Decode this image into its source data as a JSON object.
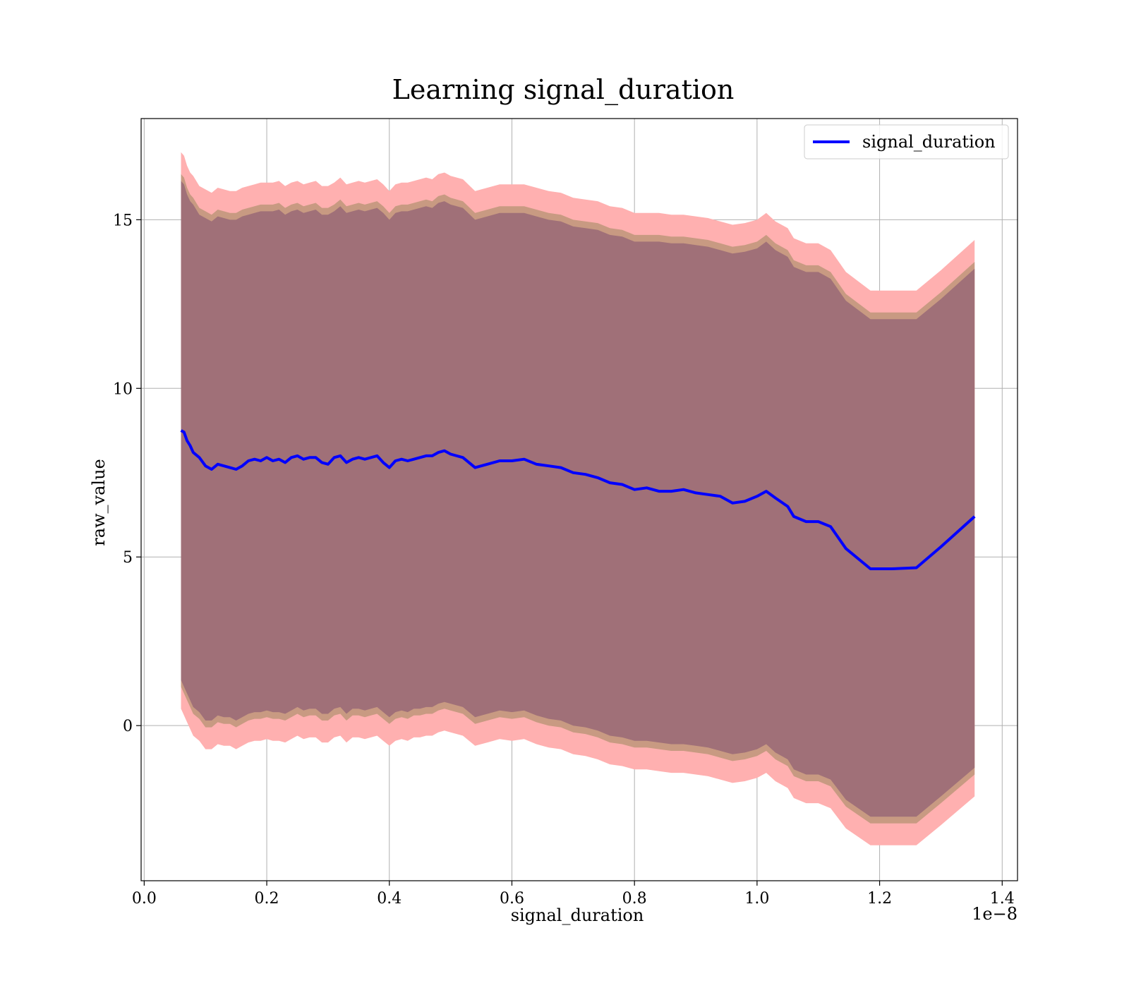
{
  "chart_data": {
    "type": "line",
    "title": "Learning signal_duration",
    "xlabel": "signal_duration",
    "ylabel": "raw_value",
    "x_offset_label": "1e−8",
    "xlim": [
      -0.005,
      1.425
    ],
    "ylim": [
      -4.6,
      18.0
    ],
    "xticks": [
      0.0,
      0.2,
      0.4,
      0.6,
      0.8,
      1.0,
      1.2,
      1.4
    ],
    "xtick_labels": [
      "0.0",
      "0.2",
      "0.4",
      "0.6",
      "0.8",
      "1.0",
      "1.2",
      "1.4"
    ],
    "yticks": [
      0,
      5,
      10,
      15
    ],
    "ytick_labels": [
      "0",
      "5",
      "10",
      "15"
    ],
    "grid": true,
    "legend": {
      "position": "top-right",
      "entries": [
        "signal_duration"
      ]
    },
    "colors": {
      "line": "#0000ff",
      "outer_band": "#ffb0b0",
      "middle_band": "#c89a82",
      "inner_band": "#a07078"
    },
    "x": [
      0.06,
      0.065,
      0.07,
      0.075,
      0.08,
      0.09,
      0.1,
      0.11,
      0.12,
      0.13,
      0.14,
      0.15,
      0.16,
      0.17,
      0.18,
      0.19,
      0.2,
      0.21,
      0.22,
      0.23,
      0.24,
      0.25,
      0.26,
      0.27,
      0.28,
      0.29,
      0.3,
      0.31,
      0.32,
      0.33,
      0.34,
      0.35,
      0.36,
      0.37,
      0.38,
      0.39,
      0.4,
      0.41,
      0.42,
      0.43,
      0.44,
      0.45,
      0.46,
      0.47,
      0.48,
      0.49,
      0.5,
      0.52,
      0.54,
      0.56,
      0.58,
      0.6,
      0.62,
      0.64,
      0.66,
      0.68,
      0.7,
      0.72,
      0.74,
      0.76,
      0.78,
      0.8,
      0.82,
      0.84,
      0.86,
      0.88,
      0.9,
      0.92,
      0.94,
      0.96,
      0.98,
      1.0,
      1.015,
      1.03,
      1.05,
      1.06,
      1.08,
      1.1,
      1.12,
      1.145,
      1.185,
      1.22,
      1.26,
      1.3,
      1.355
    ],
    "series": [
      {
        "name": "signal_duration",
        "mean": [
          8.75,
          8.7,
          8.45,
          8.3,
          8.1,
          7.95,
          7.7,
          7.6,
          7.75,
          7.7,
          7.65,
          7.6,
          7.7,
          7.85,
          7.9,
          7.85,
          7.95,
          7.85,
          7.9,
          7.8,
          7.95,
          8.0,
          7.9,
          7.95,
          7.95,
          7.8,
          7.75,
          7.95,
          8.0,
          7.8,
          7.9,
          7.95,
          7.9,
          7.95,
          8.0,
          7.8,
          7.65,
          7.85,
          7.9,
          7.85,
          7.9,
          7.95,
          8.0,
          8.0,
          8.1,
          8.15,
          8.05,
          7.95,
          7.65,
          7.75,
          7.85,
          7.85,
          7.9,
          7.75,
          7.7,
          7.65,
          7.5,
          7.45,
          7.35,
          7.2,
          7.15,
          7.0,
          7.05,
          6.95,
          6.95,
          7.0,
          6.9,
          6.85,
          6.8,
          6.6,
          6.65,
          6.8,
          6.95,
          6.75,
          6.5,
          6.2,
          6.05,
          6.05,
          5.9,
          5.25,
          4.65,
          4.65,
          4.68,
          5.3,
          6.2
        ],
        "outer_lower": [
          0.5,
          0.3,
          0.1,
          -0.1,
          -0.3,
          -0.45,
          -0.7,
          -0.7,
          -0.55,
          -0.6,
          -0.6,
          -0.7,
          -0.6,
          -0.5,
          -0.45,
          -0.45,
          -0.4,
          -0.45,
          -0.45,
          -0.5,
          -0.4,
          -0.3,
          -0.4,
          -0.35,
          -0.35,
          -0.5,
          -0.5,
          -0.35,
          -0.3,
          -0.5,
          -0.35,
          -0.35,
          -0.4,
          -0.35,
          -0.3,
          -0.45,
          -0.6,
          -0.45,
          -0.4,
          -0.45,
          -0.35,
          -0.35,
          -0.3,
          -0.3,
          -0.2,
          -0.15,
          -0.2,
          -0.3,
          -0.6,
          -0.5,
          -0.4,
          -0.45,
          -0.4,
          -0.55,
          -0.65,
          -0.7,
          -0.85,
          -0.9,
          -1.0,
          -1.15,
          -1.2,
          -1.3,
          -1.3,
          -1.35,
          -1.4,
          -1.4,
          -1.45,
          -1.5,
          -1.6,
          -1.7,
          -1.65,
          -1.55,
          -1.4,
          -1.65,
          -1.85,
          -2.15,
          -2.3,
          -2.3,
          -2.45,
          -3.05,
          -3.55,
          -3.55,
          -3.55,
          -2.95,
          -2.1
        ],
        "outer_upper": [
          17.0,
          16.9,
          16.6,
          16.4,
          16.3,
          16.0,
          15.9,
          15.8,
          15.95,
          15.9,
          15.85,
          15.85,
          15.95,
          16.0,
          16.05,
          16.1,
          16.1,
          16.1,
          16.15,
          16.0,
          16.1,
          16.15,
          16.05,
          16.1,
          16.15,
          16.0,
          16.0,
          16.1,
          16.25,
          16.05,
          16.1,
          16.15,
          16.1,
          16.15,
          16.2,
          16.05,
          15.85,
          16.05,
          16.1,
          16.1,
          16.15,
          16.2,
          16.25,
          16.2,
          16.35,
          16.4,
          16.3,
          16.2,
          15.85,
          15.95,
          16.05,
          16.05,
          16.05,
          15.95,
          15.85,
          15.8,
          15.65,
          15.6,
          15.55,
          15.4,
          15.35,
          15.2,
          15.2,
          15.2,
          15.15,
          15.15,
          15.1,
          15.05,
          14.95,
          14.85,
          14.9,
          15.0,
          15.2,
          14.95,
          14.75,
          14.45,
          14.3,
          14.3,
          14.1,
          13.45,
          12.9,
          12.9,
          12.9,
          13.5,
          14.4
        ],
        "inner_lower": [
          1.15,
          0.95,
          0.75,
          0.55,
          0.35,
          0.2,
          -0.05,
          -0.05,
          0.1,
          0.05,
          0.05,
          -0.05,
          0.05,
          0.15,
          0.2,
          0.2,
          0.25,
          0.2,
          0.2,
          0.15,
          0.25,
          0.35,
          0.25,
          0.3,
          0.3,
          0.15,
          0.15,
          0.3,
          0.35,
          0.15,
          0.3,
          0.3,
          0.25,
          0.3,
          0.35,
          0.2,
          0.05,
          0.2,
          0.25,
          0.2,
          0.3,
          0.3,
          0.35,
          0.35,
          0.45,
          0.5,
          0.45,
          0.35,
          0.05,
          0.15,
          0.25,
          0.2,
          0.25,
          0.1,
          0.0,
          -0.05,
          -0.2,
          -0.25,
          -0.35,
          -0.5,
          -0.55,
          -0.65,
          -0.65,
          -0.7,
          -0.75,
          -0.75,
          -0.8,
          -0.85,
          -0.95,
          -1.05,
          -1.0,
          -0.9,
          -0.75,
          -1.0,
          -1.2,
          -1.5,
          -1.65,
          -1.65,
          -1.8,
          -2.4,
          -2.9,
          -2.9,
          -2.9,
          -2.3,
          -1.45
        ],
        "inner_upper": [
          16.35,
          16.25,
          15.95,
          15.75,
          15.65,
          15.35,
          15.25,
          15.15,
          15.3,
          15.25,
          15.2,
          15.2,
          15.3,
          15.35,
          15.4,
          15.45,
          15.45,
          15.45,
          15.5,
          15.35,
          15.45,
          15.5,
          15.4,
          15.45,
          15.5,
          15.35,
          15.35,
          15.45,
          15.6,
          15.4,
          15.45,
          15.5,
          15.45,
          15.5,
          15.55,
          15.4,
          15.2,
          15.4,
          15.45,
          15.45,
          15.5,
          15.55,
          15.6,
          15.55,
          15.7,
          15.75,
          15.65,
          15.55,
          15.2,
          15.3,
          15.4,
          15.4,
          15.4,
          15.3,
          15.2,
          15.15,
          15.0,
          14.95,
          14.9,
          14.75,
          14.7,
          14.55,
          14.55,
          14.55,
          14.5,
          14.5,
          14.45,
          14.4,
          14.3,
          14.2,
          14.25,
          14.35,
          14.55,
          14.3,
          14.1,
          13.8,
          13.65,
          13.65,
          13.45,
          12.8,
          12.25,
          12.25,
          12.25,
          12.85,
          13.75
        ],
        "core_lower": [
          1.35,
          1.15,
          0.95,
          0.75,
          0.55,
          0.4,
          0.15,
          0.15,
          0.3,
          0.25,
          0.25,
          0.15,
          0.25,
          0.35,
          0.4,
          0.4,
          0.45,
          0.4,
          0.4,
          0.35,
          0.45,
          0.55,
          0.45,
          0.5,
          0.5,
          0.35,
          0.35,
          0.5,
          0.55,
          0.35,
          0.5,
          0.5,
          0.45,
          0.5,
          0.55,
          0.4,
          0.25,
          0.4,
          0.45,
          0.4,
          0.5,
          0.5,
          0.55,
          0.55,
          0.65,
          0.7,
          0.65,
          0.55,
          0.25,
          0.35,
          0.45,
          0.4,
          0.45,
          0.3,
          0.2,
          0.15,
          0.0,
          -0.05,
          -0.15,
          -0.3,
          -0.35,
          -0.45,
          -0.45,
          -0.5,
          -0.55,
          -0.55,
          -0.6,
          -0.65,
          -0.75,
          -0.85,
          -0.8,
          -0.7,
          -0.55,
          -0.8,
          -1.0,
          -1.3,
          -1.45,
          -1.45,
          -1.6,
          -2.2,
          -2.7,
          -2.7,
          -2.7,
          -2.1,
          -1.25
        ],
        "core_upper": [
          16.15,
          16.05,
          15.75,
          15.55,
          15.45,
          15.15,
          15.05,
          14.95,
          15.1,
          15.05,
          15.0,
          15.0,
          15.1,
          15.15,
          15.2,
          15.25,
          15.25,
          15.25,
          15.3,
          15.15,
          15.25,
          15.3,
          15.2,
          15.25,
          15.3,
          15.15,
          15.15,
          15.25,
          15.4,
          15.2,
          15.25,
          15.3,
          15.25,
          15.3,
          15.35,
          15.2,
          15.0,
          15.2,
          15.25,
          15.25,
          15.3,
          15.35,
          15.4,
          15.35,
          15.5,
          15.55,
          15.45,
          15.35,
          15.0,
          15.1,
          15.2,
          15.2,
          15.2,
          15.1,
          15.0,
          14.95,
          14.8,
          14.75,
          14.7,
          14.55,
          14.5,
          14.35,
          14.35,
          14.35,
          14.3,
          14.3,
          14.25,
          14.2,
          14.1,
          14.0,
          14.05,
          14.15,
          14.35,
          14.1,
          13.9,
          13.6,
          13.45,
          13.45,
          13.25,
          12.6,
          12.05,
          12.05,
          12.05,
          12.65,
          13.55
        ]
      }
    ]
  }
}
